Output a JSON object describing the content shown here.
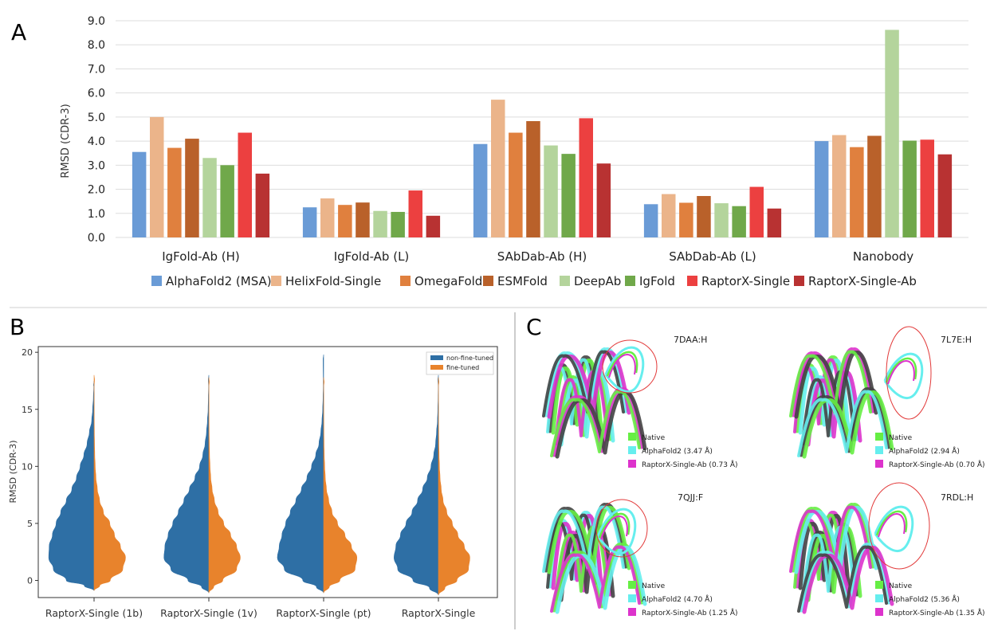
{
  "panels": {
    "a": "A",
    "b": "B",
    "c": "C"
  },
  "colors": {
    "AlphaFold2 (MSA)": "#6a9bd6",
    "HelixFold-Single": "#ebb48a",
    "OmegaFold": "#e0803e",
    "ESMFold": "#b9612a",
    "DeepAb": "#b4d49c",
    "IgFold": "#70a84a",
    "RaptorX-Single": "#ec4040",
    "RaptorX-Single-Ab": "#b83232",
    "non-fine-tuned": "#2e6fa5",
    "fine-tuned": "#e8832c",
    "native": "#66ee44",
    "alphafold2": "#66eeee",
    "raptorx": "#dd33cc",
    "ellipse": "#e23a3a"
  },
  "chart_data": [
    {
      "id": "panel-a",
      "type": "bar",
      "title": "",
      "xlabel": "",
      "ylabel": "RMSD (CDR-3)",
      "ylim": [
        0,
        9
      ],
      "yticks": [
        "0.0",
        "1.0",
        "2.0",
        "3.0",
        "4.0",
        "5.0",
        "6.0",
        "7.0",
        "8.0",
        "9.0"
      ],
      "grid": true,
      "legend": "bottom",
      "categories": [
        "IgFold-Ab (H)",
        "IgFold-Ab (L)",
        "SAbDab-Ab (H)",
        "SAbDab-Ab (L)",
        "Nanobody"
      ],
      "series": [
        {
          "name": "AlphaFold2 (MSA)",
          "values": [
            3.55,
            1.25,
            3.88,
            1.38,
            4.0
          ]
        },
        {
          "name": "HelixFold-Single",
          "values": [
            5.0,
            1.62,
            5.72,
            1.8,
            4.25
          ]
        },
        {
          "name": "OmegaFold",
          "values": [
            3.72,
            1.35,
            4.35,
            1.44,
            3.75
          ]
        },
        {
          "name": "ESMFold",
          "values": [
            4.1,
            1.45,
            4.83,
            1.72,
            4.22
          ]
        },
        {
          "name": "DeepAb",
          "values": [
            3.3,
            1.1,
            3.82,
            1.42,
            8.62
          ]
        },
        {
          "name": "IgFold",
          "values": [
            3.0,
            1.06,
            3.47,
            1.3,
            4.02
          ]
        },
        {
          "name": "RaptorX-Single",
          "values": [
            4.35,
            1.95,
            4.95,
            2.1,
            4.06
          ]
        },
        {
          "name": "RaptorX-Single-Ab",
          "values": [
            2.65,
            0.9,
            3.07,
            1.2,
            3.45
          ]
        }
      ]
    },
    {
      "id": "panel-b",
      "type": "violin",
      "title": "",
      "xlabel": "",
      "ylabel": "RMSD (CDR-3)",
      "ylim": [
        -1.5,
        20.5
      ],
      "yticks": [
        0,
        5,
        10,
        15,
        20
      ],
      "legend": "top-right",
      "categories": [
        "RaptorX-Single (1b)",
        "RaptorX-Single (1v)",
        "RaptorX-Single (pt)",
        "RaptorX-Single"
      ],
      "series": [
        {
          "name": "non-fine-tuned",
          "side": "left",
          "ranges": [
            [
              -0.9,
              17.5
            ],
            [
              -1.1,
              18.0
            ],
            [
              -1.1,
              19.8
            ],
            [
              -1.3,
              18.0
            ]
          ],
          "profile_y": [
            0,
            1,
            2,
            3,
            4,
            5,
            6,
            7,
            8,
            9,
            10,
            11,
            12,
            13,
            14,
            15,
            16,
            17
          ],
          "density": [
            [
              0.6,
              0.88,
              0.98,
              0.97,
              0.9,
              0.82,
              0.72,
              0.6,
              0.48,
              0.38,
              0.3,
              0.22,
              0.15,
              0.1,
              0.05,
              0.03,
              0.015,
              0.005
            ],
            [
              0.45,
              0.82,
              0.97,
              0.95,
              0.88,
              0.78,
              0.66,
              0.54,
              0.42,
              0.3,
              0.2,
              0.13,
              0.08,
              0.05,
              0.03,
              0.015,
              0.01,
              0.004
            ],
            [
              0.45,
              0.85,
              1.0,
              0.96,
              0.9,
              0.82,
              0.72,
              0.6,
              0.48,
              0.36,
              0.26,
              0.17,
              0.1,
              0.06,
              0.035,
              0.02,
              0.012,
              0.006
            ],
            [
              0.55,
              0.88,
              0.96,
              0.92,
              0.82,
              0.7,
              0.57,
              0.45,
              0.34,
              0.24,
              0.16,
              0.1,
              0.06,
              0.04,
              0.02,
              0.012,
              0.006,
              0.003
            ]
          ]
        },
        {
          "name": "fine-tuned",
          "side": "right",
          "ranges": [
            [
              -0.9,
              18.0
            ],
            [
              -1.1,
              17.8
            ],
            [
              -1.1,
              17.8
            ],
            [
              -1.3,
              17.8
            ]
          ],
          "profile_y": [
            0,
            1,
            2,
            3,
            4,
            5,
            6,
            7,
            8,
            9,
            10,
            11,
            12,
            13,
            14,
            15,
            16,
            17
          ],
          "density": [
            [
              0.35,
              0.62,
              0.68,
              0.57,
              0.44,
              0.34,
              0.2,
              0.12,
              0.07,
              0.04,
              0.025,
              0.015,
              0.01,
              0.006,
              0.004,
              0.003,
              0.002,
              0.001
            ],
            [
              0.3,
              0.6,
              0.68,
              0.6,
              0.47,
              0.32,
              0.2,
              0.12,
              0.07,
              0.04,
              0.025,
              0.015,
              0.01,
              0.006,
              0.004,
              0.003,
              0.002,
              0.001
            ],
            [
              0.35,
              0.68,
              0.72,
              0.6,
              0.46,
              0.3,
              0.18,
              0.11,
              0.06,
              0.035,
              0.022,
              0.013,
              0.008,
              0.005,
              0.004,
              0.003,
              0.002,
              0.001
            ],
            [
              0.4,
              0.65,
              0.68,
              0.56,
              0.42,
              0.3,
              0.18,
              0.1,
              0.06,
              0.035,
              0.022,
              0.014,
              0.009,
              0.006,
              0.004,
              0.003,
              0.002,
              0.001
            ]
          ]
        }
      ]
    }
  ],
  "structures": [
    {
      "pdb": "7DAA:H",
      "alphafold2": "AlphaFold2 (3.47 Å)",
      "raptorx": "RaptorX-Single-Ab (0.73 Å)"
    },
    {
      "pdb": "7L7E:H",
      "alphafold2": "AlphaFold2 (2.94 Å)",
      "raptorx": "RaptorX-Single-Ab (0.70 Å)"
    },
    {
      "pdb": "7QJJ:F",
      "alphafold2": "AlphaFold2 (4.70 Å)",
      "raptorx": "RaptorX-Single-Ab (1.25 Å)"
    },
    {
      "pdb": "7RDL:H",
      "alphafold2": "AlphaFold2 (5.36 Å)",
      "raptorx": "RaptorX-Single-Ab (1.35 Å)"
    }
  ],
  "structure_legend_native": "Native"
}
